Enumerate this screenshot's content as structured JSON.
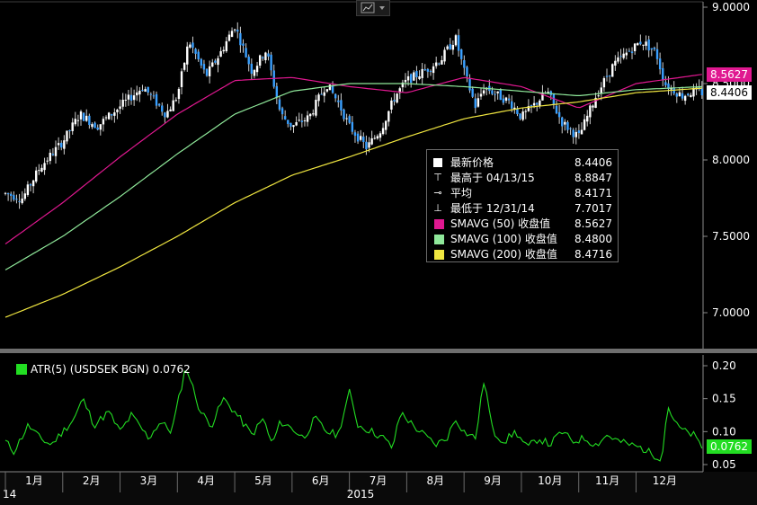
{
  "chart_data": [
    {
      "type": "candlestick",
      "instrument": "USDSEK",
      "y_ticks": [
        "9.0000",
        "8.5000",
        "8.0000",
        "7.5000",
        "7.0000"
      ],
      "ylim": [
        6.75,
        9.05
      ],
      "x_month_labels": [
        "1月",
        "2月",
        "3月",
        "4月",
        "5月",
        "6月",
        "7月",
        "8月",
        "9月",
        "10月",
        "11月",
        "12月"
      ],
      "x_year_label": "2015",
      "x_partial_label": "14",
      "last_price_tag": "8.4406",
      "sma50_tag": "8.5627",
      "legend": [
        {
          "icon": "last",
          "label": "最新价格",
          "value": "8.4406"
        },
        {
          "icon": "high",
          "label": "最高于 04/13/15",
          "value": "8.8847"
        },
        {
          "icon": "avg",
          "label": "平均",
          "value": "8.4171"
        },
        {
          "icon": "low",
          "label": "最低于 12/31/14",
          "value": "7.7017"
        },
        {
          "icon": "swatch",
          "color": "#e01890",
          "label": "SMAVG (50) 收盘值",
          "value": "8.5627"
        },
        {
          "icon": "swatch",
          "color": "#8fe89a",
          "label": "SMAVG (100) 收盘值",
          "value": "8.4800"
        },
        {
          "icon": "swatch",
          "color": "#f0e640",
          "label": "SMAVG (200) 收盘值",
          "value": "8.4716"
        }
      ],
      "price_anchors": [
        [
          0,
          7.78
        ],
        [
          0.3,
          7.75
        ],
        [
          0.6,
          7.95
        ],
        [
          1.0,
          8.12
        ],
        [
          1.3,
          8.3
        ],
        [
          1.6,
          8.22
        ],
        [
          2.0,
          8.35
        ],
        [
          2.4,
          8.48
        ],
        [
          2.8,
          8.3
        ],
        [
          3.0,
          8.42
        ],
        [
          3.2,
          8.78
        ],
        [
          3.5,
          8.55
        ],
        [
          3.75,
          8.7
        ],
        [
          4.0,
          8.88
        ],
        [
          4.3,
          8.58
        ],
        [
          4.55,
          8.72
        ],
        [
          4.8,
          8.3
        ],
        [
          5.0,
          8.22
        ],
        [
          5.3,
          8.28
        ],
        [
          5.6,
          8.5
        ],
        [
          5.8,
          8.38
        ],
        [
          6.0,
          8.22
        ],
        [
          6.3,
          8.08
        ],
        [
          6.55,
          8.2
        ],
        [
          6.8,
          8.42
        ],
        [
          7.0,
          8.52
        ],
        [
          7.3,
          8.58
        ],
        [
          7.6,
          8.66
        ],
        [
          7.85,
          8.8
        ],
        [
          8.0,
          8.58
        ],
        [
          8.2,
          8.35
        ],
        [
          8.35,
          8.48
        ],
        [
          8.6,
          8.42
        ],
        [
          8.8,
          8.38
        ],
        [
          9.0,
          8.28
        ],
        [
          9.2,
          8.35
        ],
        [
          9.45,
          8.45
        ],
        [
          9.7,
          8.25
        ],
        [
          9.9,
          8.18
        ],
        [
          10.0,
          8.15
        ],
        [
          10.3,
          8.42
        ],
        [
          10.6,
          8.62
        ],
        [
          10.9,
          8.72
        ],
        [
          11.1,
          8.78
        ],
        [
          11.35,
          8.7
        ],
        [
          11.5,
          8.5
        ],
        [
          11.8,
          8.42
        ],
        [
          12.0,
          8.45
        ],
        [
          12.15,
          8.44
        ]
      ],
      "sma_series": [
        {
          "color": "#e01890",
          "points": [
            [
              0,
              7.45
            ],
            [
              1.0,
              7.72
            ],
            [
              2.0,
              8.02
            ],
            [
              3.0,
              8.3
            ],
            [
              4.0,
              8.52
            ],
            [
              5.0,
              8.54
            ],
            [
              6.0,
              8.48
            ],
            [
              7.0,
              8.44
            ],
            [
              8.0,
              8.54
            ],
            [
              9.0,
              8.48
            ],
            [
              10.0,
              8.34
            ],
            [
              11.0,
              8.5
            ],
            [
              12.15,
              8.56
            ]
          ]
        },
        {
          "color": "#8fe89a",
          "points": [
            [
              0,
              7.28
            ],
            [
              1.0,
              7.5
            ],
            [
              2.0,
              7.76
            ],
            [
              3.0,
              8.04
            ],
            [
              4.0,
              8.3
            ],
            [
              5.0,
              8.45
            ],
            [
              6.0,
              8.5
            ],
            [
              7.0,
              8.5
            ],
            [
              8.0,
              8.48
            ],
            [
              9.0,
              8.45
            ],
            [
              10.0,
              8.42
            ],
            [
              11.0,
              8.46
            ],
            [
              12.15,
              8.48
            ]
          ]
        },
        {
          "color": "#f0e640",
          "points": [
            [
              0,
              6.97
            ],
            [
              1.0,
              7.12
            ],
            [
              2.0,
              7.3
            ],
            [
              3.0,
              7.5
            ],
            [
              4.0,
              7.72
            ],
            [
              5.0,
              7.9
            ],
            [
              6.0,
              8.02
            ],
            [
              7.0,
              8.15
            ],
            [
              8.0,
              8.27
            ],
            [
              9.0,
              8.34
            ],
            [
              10.0,
              8.38
            ],
            [
              11.0,
              8.44
            ],
            [
              12.15,
              8.47
            ]
          ]
        }
      ]
    },
    {
      "type": "line",
      "title": "ATR(5) (USDSEK BGN) 0.0762",
      "y_ticks": [
        "0.20",
        "0.15",
        "0.10",
        "0.05"
      ],
      "ylim": [
        0.035,
        0.21
      ],
      "last_value_tag": "0.0762",
      "color": "#22dd22",
      "anchors": [
        [
          0,
          0.085
        ],
        [
          0.15,
          0.07
        ],
        [
          0.4,
          0.11
        ],
        [
          0.6,
          0.09
        ],
        [
          0.8,
          0.08
        ],
        [
          1.0,
          0.1
        ],
        [
          1.2,
          0.12
        ],
        [
          1.35,
          0.15
        ],
        [
          1.55,
          0.11
        ],
        [
          1.8,
          0.13
        ],
        [
          2.0,
          0.1
        ],
        [
          2.2,
          0.125
        ],
        [
          2.5,
          0.09
        ],
        [
          2.7,
          0.115
        ],
        [
          2.9,
          0.1
        ],
        [
          3.15,
          0.2
        ],
        [
          3.4,
          0.13
        ],
        [
          3.6,
          0.11
        ],
        [
          3.8,
          0.15
        ],
        [
          4.0,
          0.13
        ],
        [
          4.3,
          0.095
        ],
        [
          4.5,
          0.12
        ],
        [
          4.65,
          0.08
        ],
        [
          4.8,
          0.115
        ],
        [
          5.0,
          0.105
        ],
        [
          5.2,
          0.09
        ],
        [
          5.4,
          0.12
        ],
        [
          5.6,
          0.1
        ],
        [
          5.8,
          0.095
        ],
        [
          6.0,
          0.16
        ],
        [
          6.15,
          0.11
        ],
        [
          6.4,
          0.1
        ],
        [
          6.6,
          0.09
        ],
        [
          6.75,
          0.075
        ],
        [
          6.9,
          0.13
        ],
        [
          7.1,
          0.11
        ],
        [
          7.3,
          0.095
        ],
        [
          7.5,
          0.08
        ],
        [
          7.7,
          0.09
        ],
        [
          7.85,
          0.12
        ],
        [
          8.0,
          0.1
        ],
        [
          8.2,
          0.09
        ],
        [
          8.35,
          0.18
        ],
        [
          8.5,
          0.1
        ],
        [
          8.7,
          0.085
        ],
        [
          8.9,
          0.1
        ],
        [
          9.1,
          0.075
        ],
        [
          9.3,
          0.09
        ],
        [
          9.5,
          0.08
        ],
        [
          9.7,
          0.1
        ],
        [
          9.9,
          0.085
        ],
        [
          10.1,
          0.09
        ],
        [
          10.3,
          0.08
        ],
        [
          10.5,
          0.095
        ],
        [
          10.7,
          0.085
        ],
        [
          10.9,
          0.08
        ],
        [
          11.1,
          0.075
        ],
        [
          11.3,
          0.065
        ],
        [
          11.45,
          0.06
        ],
        [
          11.55,
          0.14
        ],
        [
          11.7,
          0.11
        ],
        [
          11.85,
          0.1
        ],
        [
          12.0,
          0.095
        ],
        [
          12.15,
          0.0762
        ]
      ]
    }
  ]
}
